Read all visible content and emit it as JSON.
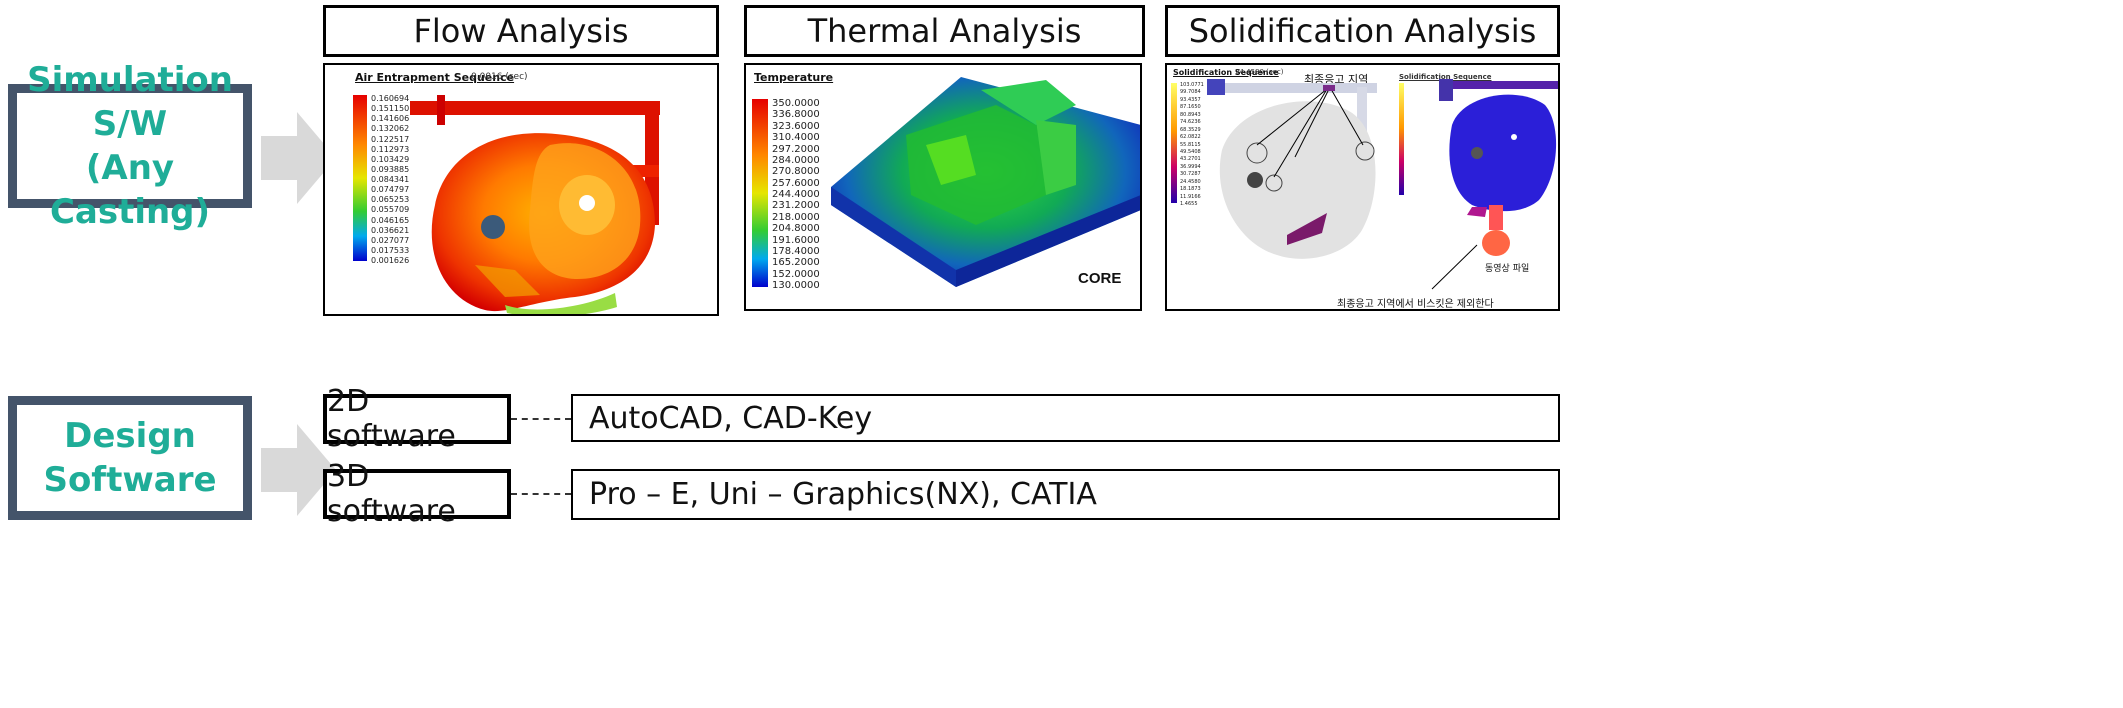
{
  "left": {
    "simulation_label": "Simulation S/W\n(Any Casting)",
    "design_label": "Design Software"
  },
  "headers": {
    "flow": "Flow Analysis",
    "thermal": "Thermal Analysis",
    "solid": "Solidification Analysis"
  },
  "flow_panel": {
    "caption": "Air Entrapment Sequence",
    "time": "0.0016 (sec)",
    "scale_values": [
      "0.160694",
      "0.151150",
      "0.141606",
      "0.132062",
      "0.122517",
      "0.112973",
      "0.103429",
      "0.093885",
      "0.084341",
      "0.074797",
      "0.065253",
      "0.055709",
      "0.046165",
      "0.036621",
      "0.027077",
      "0.017533",
      "0.001626"
    ]
  },
  "thermal_panel": {
    "caption": "Temperature",
    "core_label": "CORE",
    "scale_values": [
      "350.0000",
      "336.8000",
      "323.6000",
      "310.4000",
      "297.2000",
      "284.0000",
      "270.8000",
      "257.6000",
      "244.4000",
      "231.2000",
      "218.0000",
      "204.8000",
      "191.6000",
      "178.4000",
      "165.2000",
      "152.0000",
      "130.0000"
    ]
  },
  "solid_panel": {
    "caption": "Solidification Sequence",
    "caption2": "Solidification Sequence",
    "time": "24.4580 (sec)",
    "final_region": "최종응고 지역",
    "video_file": "동영상 파일",
    "note": "최종응고 지역에서 비스킷은 제외한다",
    "scale_values": [
      "103.0771",
      "99.7084",
      "93.4357",
      "87.1650",
      "80.8943",
      "74.6236",
      "68.3529",
      "62.0822",
      "55.8115",
      "49.5408",
      "43.2701",
      "36.9994",
      "30.7287",
      "24.4580",
      "18.1873",
      "11.9166",
      "1.4655"
    ]
  },
  "design": {
    "sw2d": "2D software",
    "sw3d": "3D software",
    "list2d": "AutoCAD,  CAD-Key",
    "list3d": "Pro – E,  Uni – Graphics(NX),  CATIA"
  },
  "colors": {
    "box_border": "#44546a",
    "label_text": "#1fad98",
    "arrow": "#d9d9d9"
  }
}
